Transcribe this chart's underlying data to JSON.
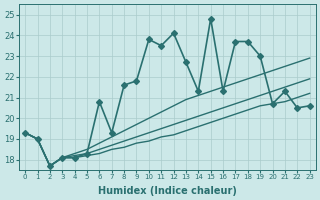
{
  "xlabel": "Humidex (Indice chaleur)",
  "ylabel": "",
  "xlim": [
    -0.5,
    23.5
  ],
  "ylim": [
    17.5,
    25.5
  ],
  "yticks": [
    18,
    19,
    20,
    21,
    22,
    23,
    24,
    25
  ],
  "xticks": [
    0,
    1,
    2,
    3,
    4,
    5,
    6,
    7,
    8,
    9,
    10,
    11,
    12,
    13,
    14,
    15,
    16,
    17,
    18,
    19,
    20,
    21,
    22,
    23
  ],
  "background_color": "#cce8e8",
  "grid_color": "#aacccc",
  "line_color": "#2a7070",
  "lines": [
    {
      "x": [
        0,
        1,
        2,
        3,
        4,
        5,
        6,
        7,
        8,
        9,
        10,
        11,
        12,
        13,
        14,
        15,
        16,
        17,
        18,
        19,
        20,
        21,
        22,
        23
      ],
      "y": [
        19.3,
        19.0,
        17.7,
        18.1,
        18.1,
        18.3,
        20.8,
        19.3,
        21.6,
        21.8,
        23.8,
        23.5,
        24.1,
        22.7,
        21.3,
        24.8,
        21.3,
        23.7,
        23.7,
        23.0,
        20.7,
        21.3,
        20.5,
        20.6
      ],
      "style": "-",
      "marker": "D",
      "markersize": 3,
      "linewidth": 1.2
    },
    {
      "x": [
        0,
        1,
        2,
        3,
        4,
        5,
        6,
        7,
        8,
        9,
        10,
        11,
        12,
        13,
        14,
        15,
        16,
        17,
        18,
        19,
        20,
        21,
        22,
        23
      ],
      "y": [
        19.3,
        19.0,
        17.7,
        18.1,
        18.3,
        18.5,
        18.8,
        19.1,
        19.4,
        19.7,
        20.0,
        20.3,
        20.6,
        20.9,
        21.1,
        21.3,
        21.5,
        21.7,
        21.9,
        22.1,
        22.3,
        22.5,
        22.7,
        22.9
      ],
      "style": "-",
      "marker": null,
      "markersize": 0,
      "linewidth": 1.0
    },
    {
      "x": [
        0,
        1,
        2,
        3,
        4,
        5,
        6,
        7,
        8,
        9,
        10,
        11,
        12,
        13,
        14,
        15,
        16,
        17,
        18,
        19,
        20,
        21,
        22,
        23
      ],
      "y": [
        19.3,
        19.0,
        17.7,
        18.1,
        18.2,
        18.3,
        18.5,
        18.7,
        18.9,
        19.1,
        19.3,
        19.5,
        19.7,
        19.9,
        20.1,
        20.3,
        20.5,
        20.7,
        20.9,
        21.1,
        21.3,
        21.5,
        21.7,
        21.9
      ],
      "style": "-",
      "marker": null,
      "markersize": 0,
      "linewidth": 1.0
    },
    {
      "x": [
        0,
        1,
        2,
        3,
        4,
        5,
        6,
        7,
        8,
        9,
        10,
        11,
        12,
        13,
        14,
        15,
        16,
        17,
        18,
        19,
        20,
        21,
        22,
        23
      ],
      "y": [
        19.3,
        19.0,
        17.7,
        18.1,
        18.1,
        18.2,
        18.3,
        18.5,
        18.6,
        18.8,
        18.9,
        19.1,
        19.2,
        19.4,
        19.6,
        19.8,
        20.0,
        20.2,
        20.4,
        20.6,
        20.7,
        20.8,
        21.0,
        21.2
      ],
      "style": "-",
      "marker": null,
      "markersize": 0,
      "linewidth": 1.0
    }
  ]
}
